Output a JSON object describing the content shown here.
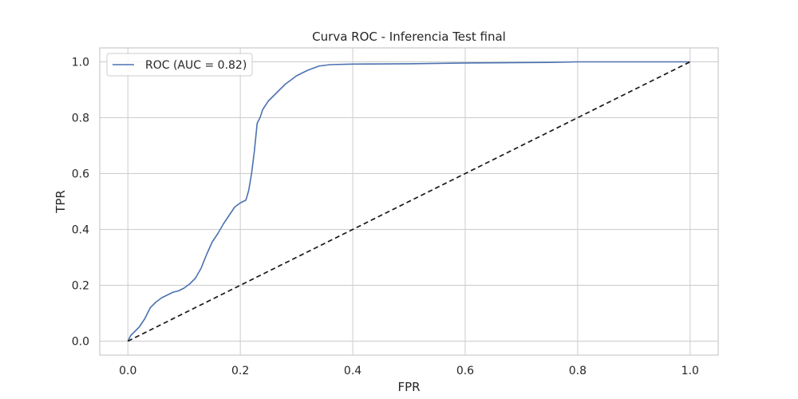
{
  "chart_data": {
    "type": "line",
    "title": "Curva ROC - Inferencia Test final",
    "xlabel": "FPR",
    "ylabel": "TPR",
    "xlim": [
      -0.05,
      1.05
    ],
    "ylim": [
      -0.05,
      1.05
    ],
    "xticks": [
      0.0,
      0.2,
      0.4,
      0.6,
      0.8,
      1.0
    ],
    "yticks": [
      0.0,
      0.2,
      0.4,
      0.6,
      0.8,
      1.0
    ],
    "xtick_labels": [
      "0.0",
      "0.2",
      "0.4",
      "0.6",
      "0.8",
      "1.0"
    ],
    "ytick_labels": [
      "0.0",
      "0.2",
      "0.4",
      "0.6",
      "0.8",
      "1.0"
    ],
    "grid": true,
    "legend_position": "top-left",
    "series": [
      {
        "name": "ROC (AUC = 0.82)",
        "color": "#4c72b0",
        "style": "solid",
        "x": [
          0.0,
          0.005,
          0.01,
          0.02,
          0.03,
          0.04,
          0.05,
          0.06,
          0.07,
          0.08,
          0.09,
          0.1,
          0.11,
          0.12,
          0.13,
          0.14,
          0.15,
          0.16,
          0.17,
          0.18,
          0.19,
          0.2,
          0.21,
          0.215,
          0.22,
          0.225,
          0.23,
          0.235,
          0.24,
          0.25,
          0.26,
          0.27,
          0.28,
          0.29,
          0.3,
          0.32,
          0.34,
          0.36,
          0.4,
          0.5,
          0.6,
          0.75,
          0.8,
          1.0
        ],
        "y": [
          0.0,
          0.02,
          0.03,
          0.05,
          0.08,
          0.12,
          0.14,
          0.155,
          0.165,
          0.175,
          0.18,
          0.19,
          0.205,
          0.225,
          0.26,
          0.31,
          0.355,
          0.385,
          0.42,
          0.45,
          0.48,
          0.495,
          0.505,
          0.54,
          0.6,
          0.68,
          0.78,
          0.8,
          0.83,
          0.86,
          0.88,
          0.9,
          0.92,
          0.935,
          0.95,
          0.97,
          0.985,
          0.99,
          0.992,
          0.993,
          0.996,
          0.998,
          1.0,
          1.0
        ]
      },
      {
        "name": "",
        "color": "#1a1a1a",
        "style": "dashed",
        "x": [
          0.0,
          1.0
        ],
        "y": [
          0.0,
          1.0
        ]
      }
    ]
  }
}
